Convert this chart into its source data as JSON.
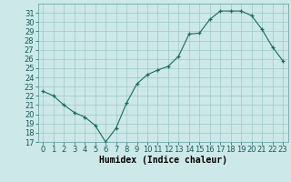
{
  "x": [
    0,
    1,
    2,
    3,
    4,
    5,
    6,
    7,
    8,
    9,
    10,
    11,
    12,
    13,
    14,
    15,
    16,
    17,
    18,
    19,
    20,
    21,
    22,
    23
  ],
  "y": [
    22.5,
    22.0,
    21.0,
    20.2,
    19.7,
    18.8,
    17.0,
    18.5,
    21.2,
    23.3,
    24.3,
    24.8,
    25.2,
    26.3,
    28.7,
    28.8,
    30.3,
    31.2,
    31.2,
    31.2,
    30.7,
    29.2,
    27.3,
    25.8
  ],
  "xlabel": "Humidex (Indice chaleur)",
  "ylim": [
    17,
    32
  ],
  "xlim": [
    -0.5,
    23.5
  ],
  "yticks": [
    17,
    18,
    19,
    20,
    21,
    22,
    23,
    24,
    25,
    26,
    27,
    28,
    29,
    30,
    31
  ],
  "xticks": [
    0,
    1,
    2,
    3,
    4,
    5,
    6,
    7,
    8,
    9,
    10,
    11,
    12,
    13,
    14,
    15,
    16,
    17,
    18,
    19,
    20,
    21,
    22,
    23
  ],
  "line_color": "#1a6b5a",
  "marker_color": "#1a6b5a",
  "bg_color": "#cce8e8",
  "grid_color": "#9dc8c8",
  "xlabel_fontsize": 7,
  "tick_fontsize": 6
}
